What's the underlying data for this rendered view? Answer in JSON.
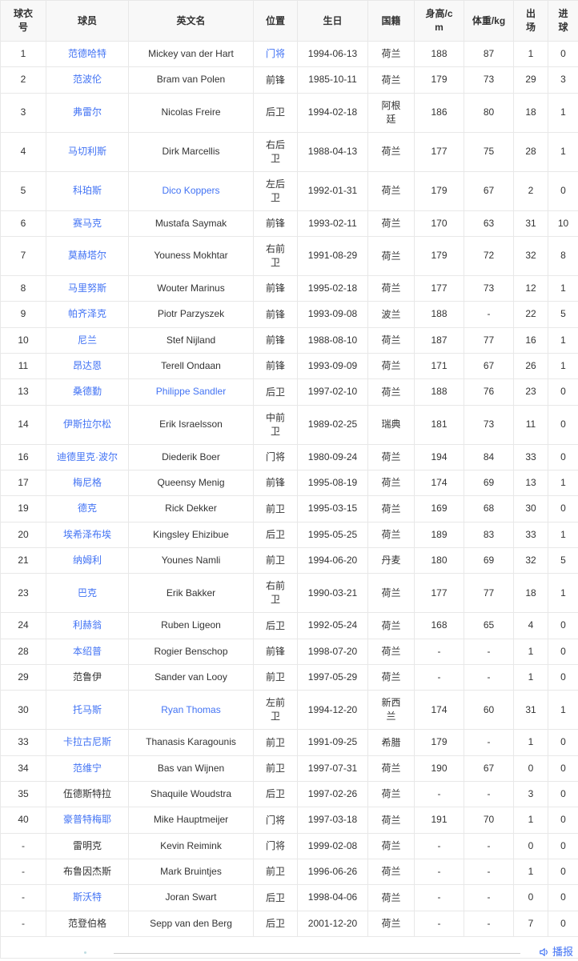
{
  "table": {
    "columns": [
      {
        "key": "jersey-number",
        "label": "球衣号"
      },
      {
        "key": "player-name",
        "label": "球员"
      },
      {
        "key": "english-name",
        "label": "英文名"
      },
      {
        "key": "position",
        "label": "位置"
      },
      {
        "key": "birthday",
        "label": "生日"
      },
      {
        "key": "nationality",
        "label": "国籍"
      },
      {
        "key": "height",
        "label": "身高/cm"
      },
      {
        "key": "weight",
        "label": "体重/kg"
      },
      {
        "key": "appearances",
        "label": "出场"
      },
      {
        "key": "goals",
        "label": "进球"
      }
    ],
    "rows": [
      {
        "cells": [
          "1",
          "范德哈特",
          "Mickey van der Hart",
          "门将",
          "1994-06-13",
          "荷兰",
          "188",
          "87",
          "1",
          "0"
        ],
        "links": [
          1,
          3
        ]
      },
      {
        "cells": [
          "2",
          "范波伦",
          "Bram van Polen",
          "前锋",
          "1985-10-11",
          "荷兰",
          "179",
          "73",
          "29",
          "3"
        ],
        "links": [
          1
        ]
      },
      {
        "cells": [
          "3",
          "弗雷尔",
          "Nicolas Freire",
          "后卫",
          "1994-02-18",
          "阿根廷",
          "186",
          "80",
          "18",
          "1"
        ],
        "links": [
          1
        ]
      },
      {
        "cells": [
          "4",
          "马切利斯",
          "Dirk Marcellis",
          "右后卫",
          "1988-04-13",
          "荷兰",
          "177",
          "75",
          "28",
          "1"
        ],
        "links": [
          1
        ]
      },
      {
        "cells": [
          "5",
          "科珀斯",
          "Dico Koppers",
          "左后卫",
          "1992-01-31",
          "荷兰",
          "179",
          "67",
          "2",
          "0"
        ],
        "links": [
          1,
          2
        ]
      },
      {
        "cells": [
          "6",
          "赛马克",
          "Mustafa Saymak",
          "前锋",
          "1993-02-11",
          "荷兰",
          "170",
          "63",
          "31",
          "10"
        ],
        "links": [
          1
        ]
      },
      {
        "cells": [
          "7",
          "莫赫塔尔",
          "Youness Mokhtar",
          "右前卫",
          "1991-08-29",
          "荷兰",
          "179",
          "72",
          "32",
          "8"
        ],
        "links": [
          1
        ]
      },
      {
        "cells": [
          "8",
          "马里努斯",
          "Wouter Marinus",
          "前锋",
          "1995-02-18",
          "荷兰",
          "177",
          "73",
          "12",
          "1"
        ],
        "links": [
          1
        ]
      },
      {
        "cells": [
          "9",
          "帕齐泽克",
          "Piotr Parzyszek",
          "前锋",
          "1993-09-08",
          "波兰",
          "188",
          "-",
          "22",
          "5"
        ],
        "links": [
          1
        ]
      },
      {
        "cells": [
          "10",
          "尼兰",
          "Stef Nijland",
          "前锋",
          "1988-08-10",
          "荷兰",
          "187",
          "77",
          "16",
          "1"
        ],
        "links": [
          1
        ]
      },
      {
        "cells": [
          "11",
          "昂达恩",
          "Terell Ondaan",
          "前锋",
          "1993-09-09",
          "荷兰",
          "171",
          "67",
          "26",
          "1"
        ],
        "links": [
          1
        ]
      },
      {
        "cells": [
          "13",
          "桑德勤",
          "Philippe Sandler",
          "后卫",
          "1997-02-10",
          "荷兰",
          "188",
          "76",
          "23",
          "0"
        ],
        "links": [
          1,
          2
        ]
      },
      {
        "cells": [
          "14",
          "伊斯拉尔松",
          "Erik Israelsson",
          "中前卫",
          "1989-02-25",
          "瑞典",
          "181",
          "73",
          "11",
          "0"
        ],
        "links": [
          1
        ]
      },
      {
        "cells": [
          "16",
          "迪德里克·波尔",
          "Diederik Boer",
          "门将",
          "1980-09-24",
          "荷兰",
          "194",
          "84",
          "33",
          "0"
        ],
        "links": [
          1
        ]
      },
      {
        "cells": [
          "17",
          "梅尼格",
          "Queensy Menig",
          "前锋",
          "1995-08-19",
          "荷兰",
          "174",
          "69",
          "13",
          "1"
        ],
        "links": [
          1
        ]
      },
      {
        "cells": [
          "19",
          "德克",
          "Rick Dekker",
          "前卫",
          "1995-03-15",
          "荷兰",
          "169",
          "68",
          "30",
          "0"
        ],
        "links": [
          1
        ]
      },
      {
        "cells": [
          "20",
          "埃希泽布埃",
          "Kingsley Ehizibue",
          "后卫",
          "1995-05-25",
          "荷兰",
          "189",
          "83",
          "33",
          "1"
        ],
        "links": [
          1
        ]
      },
      {
        "cells": [
          "21",
          "纳姆利",
          "Younes Namli",
          "前卫",
          "1994-06-20",
          "丹麦",
          "180",
          "69",
          "32",
          "5"
        ],
        "links": [
          1
        ]
      },
      {
        "cells": [
          "23",
          "巴克",
          "Erik Bakker",
          "右前卫",
          "1990-03-21",
          "荷兰",
          "177",
          "77",
          "18",
          "1"
        ],
        "links": [
          1
        ]
      },
      {
        "cells": [
          "24",
          "利赫翁",
          "Ruben Ligeon",
          "后卫",
          "1992-05-24",
          "荷兰",
          "168",
          "65",
          "4",
          "0"
        ],
        "links": [
          1
        ]
      },
      {
        "cells": [
          "28",
          "本绍普",
          "Rogier Benschop",
          "前锋",
          "1998-07-20",
          "荷兰",
          "-",
          "-",
          "1",
          "0"
        ],
        "links": [
          1
        ]
      },
      {
        "cells": [
          "29",
          "范鲁伊",
          "Sander van Looy",
          "前卫",
          "1997-05-29",
          "荷兰",
          "-",
          "-",
          "1",
          "0"
        ],
        "links": []
      },
      {
        "cells": [
          "30",
          "托马斯",
          "Ryan Thomas",
          "左前卫",
          "1994-12-20",
          "新西兰",
          "174",
          "60",
          "31",
          "1"
        ],
        "links": [
          1,
          2
        ]
      },
      {
        "cells": [
          "33",
          "卡拉古尼斯",
          "Thanasis Karagounis",
          "前卫",
          "1991-09-25",
          "希腊",
          "179",
          "-",
          "1",
          "0"
        ],
        "links": [
          1
        ]
      },
      {
        "cells": [
          "34",
          "范维宁",
          "Bas van Wijnen",
          "前卫",
          "1997-07-31",
          "荷兰",
          "190",
          "67",
          "0",
          "0"
        ],
        "links": [
          1
        ]
      },
      {
        "cells": [
          "35",
          "伍德斯特拉",
          "Shaquile Woudstra",
          "后卫",
          "1997-02-26",
          "荷兰",
          "-",
          "-",
          "3",
          "0"
        ],
        "links": []
      },
      {
        "cells": [
          "40",
          "豪普特梅耶",
          "Mike Hauptmeijer",
          "门将",
          "1997-03-18",
          "荷兰",
          "191",
          "70",
          "1",
          "0"
        ],
        "links": [
          1
        ]
      },
      {
        "cells": [
          "-",
          "雷明克",
          "Kevin Reimink",
          "门将",
          "1999-02-08",
          "荷兰",
          "-",
          "-",
          "0",
          "0"
        ],
        "links": []
      },
      {
        "cells": [
          "-",
          "布鲁因杰斯",
          "Mark Bruintjes",
          "前卫",
          "1996-06-26",
          "荷兰",
          "-",
          "-",
          "1",
          "0"
        ],
        "links": []
      },
      {
        "cells": [
          "-",
          "斯沃特",
          "Joran Swart",
          "后卫",
          "1998-04-06",
          "荷兰",
          "-",
          "-",
          "0",
          "0"
        ],
        "links": [
          1
        ]
      },
      {
        "cells": [
          "-",
          "范登伯格",
          "Sepp van den Berg",
          "后卫",
          "2001-12-20",
          "荷兰",
          "-",
          "-",
          "7",
          "0"
        ],
        "links": []
      }
    ]
  },
  "footer": {
    "broadcast_label": "播报"
  },
  "colors": {
    "link_blue": "#4273F4",
    "header_bg": "#F8F8F8",
    "border": "#E8E8E8",
    "text": "#333333",
    "divider": "#CCCCCC"
  }
}
